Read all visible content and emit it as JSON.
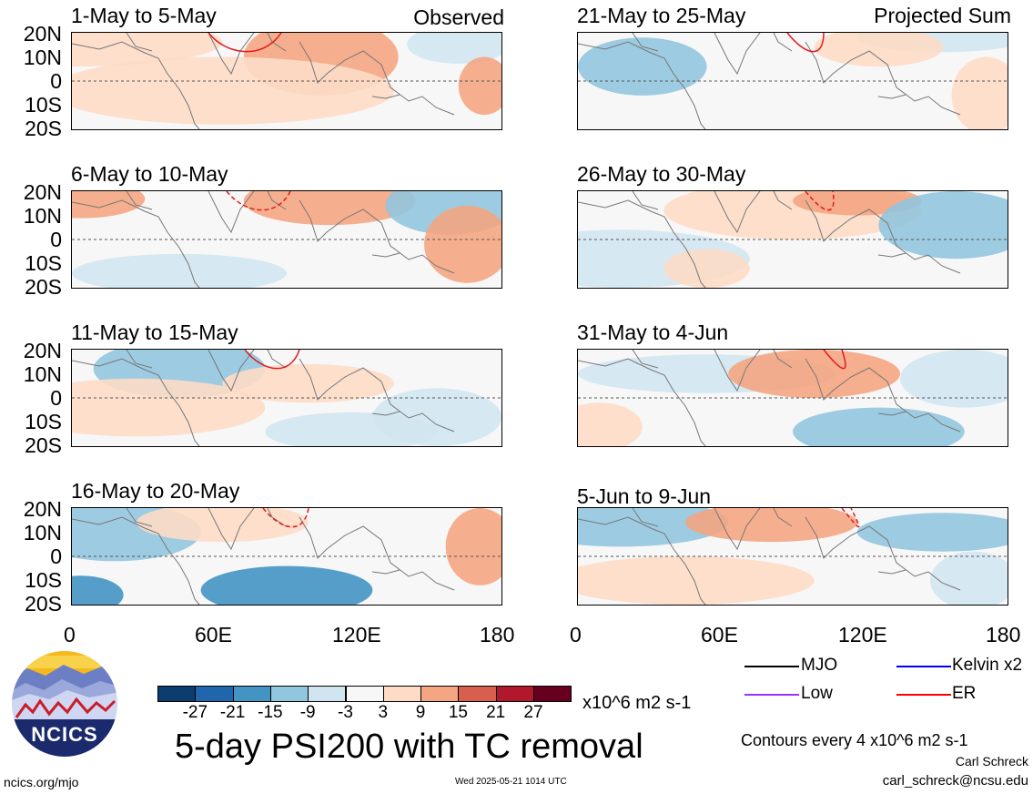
{
  "panels": [
    {
      "title": "1-May to 5-May",
      "note": "Observed"
    },
    {
      "title": "6-May to 10-May",
      "note": ""
    },
    {
      "title": "11-May to 15-May",
      "note": ""
    },
    {
      "title": "16-May to 20-May",
      "note": ""
    },
    {
      "title": "21-May to 25-May",
      "note": "Projected Sum"
    },
    {
      "title": "26-May to 30-May",
      "note": ""
    },
    {
      "title": "31-May to 4-Jun",
      "note": ""
    },
    {
      "title": "5-Jun to 9-Jun",
      "note": ""
    }
  ],
  "lat_labels": [
    "20N",
    "10N",
    "0",
    "10S",
    "20S"
  ],
  "lon_labels": [
    "0",
    "60E",
    "120E",
    "180"
  ],
  "colorbar": {
    "colors": [
      "#0d3c6e",
      "#2166ac",
      "#4393c3",
      "#92c5de",
      "#d1e5f0",
      "#f7f7f7",
      "#fddbc7",
      "#f4a582",
      "#d6604d",
      "#b2182b",
      "#67001f"
    ],
    "labels": [
      "-27",
      "-21",
      "-15",
      "-9",
      "-3",
      "3",
      "9",
      "15",
      "21",
      "27"
    ],
    "units": "x10^6 m2 s-1"
  },
  "legend": [
    {
      "label": "MJO",
      "color": "#000000"
    },
    {
      "label": "Kelvin x2",
      "color": "#0000ff"
    },
    {
      "label": "Low",
      "color": "#9933ff"
    },
    {
      "label": "ER",
      "color": "#ff0000"
    }
  ],
  "title": "5-day PSI200 with TC removal",
  "contour_note": "Contours every 4 x10^6 m2 s-1",
  "author": "Carl Schreck",
  "email": "carl_schreck@ncsu.edu",
  "website": "ncics.org/mjo",
  "timestamp": "Wed 2025-05-21 1014 UTC",
  "logo_text": "NCICS"
}
